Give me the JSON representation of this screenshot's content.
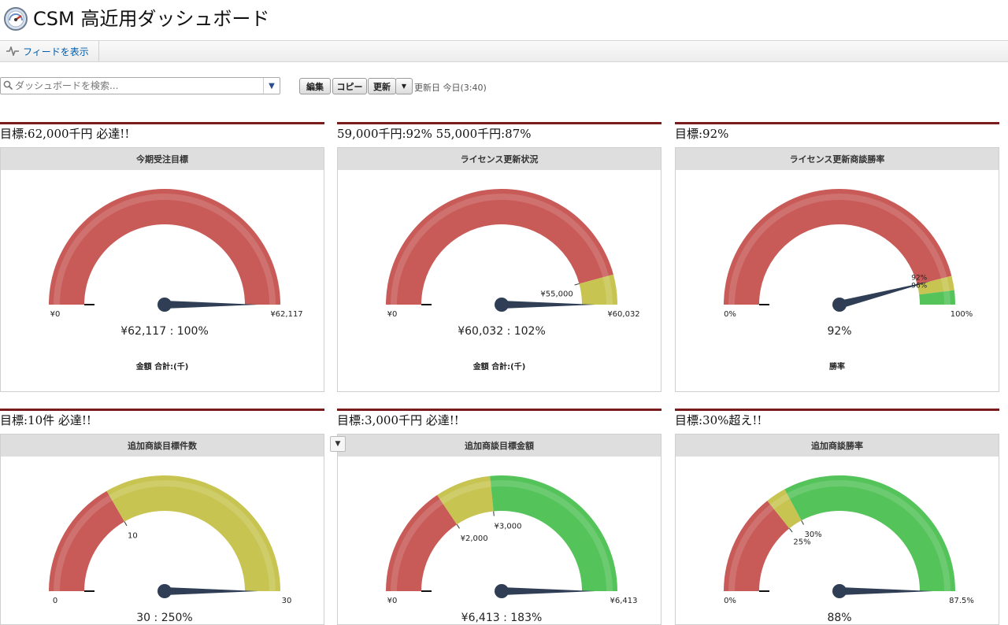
{
  "app": {
    "title": "CSM 高近用ダッシュボード",
    "icon": "dashboard-gauge-icon"
  },
  "feed": {
    "label": "フィードを表示",
    "icon": "feed-icon"
  },
  "toolbar": {
    "search_placeholder": "ダッシュボードを検索...",
    "edit_label": "編集",
    "copy_label": "コピー",
    "refresh_label": "更新",
    "refresh_menu": "▼",
    "updated_text": "更新日 今日(3:40)"
  },
  "colors": {
    "red": "#c85a57",
    "yellow": "#c8c452",
    "green": "#54c35a",
    "needle": "#2f3e55",
    "rule": "#7b1c1c"
  },
  "panels": [
    {
      "title": "目標:62,000千円 必達!!",
      "header": "今期受注目標",
      "min_label": "¥0",
      "max_label": "¥62,117",
      "value_text": "¥62,117 : 100%",
      "footer": "金額 合計:(千)",
      "min": 0,
      "max": 62117,
      "value": 62117,
      "bands": [
        {
          "color": "red",
          "to": 62117
        }
      ],
      "band_labels": [],
      "needle_labels": []
    },
    {
      "title": "59,000千円:92%  55,000千円:87%",
      "header": "ライセンス更新状況",
      "min_label": "¥0",
      "max_label": "¥60,032",
      "value_text": "¥60,032 : 102%",
      "footer": "金額 合計:(千)",
      "min": 0,
      "max": 60032,
      "value": 60032,
      "bands": [
        {
          "color": "red",
          "to": 55000
        },
        {
          "color": "yellow",
          "to": 60032
        }
      ],
      "band_labels": [
        {
          "value": 55000,
          "text": "¥55,000"
        }
      ],
      "needle_labels": []
    },
    {
      "title": "目標:92%",
      "header": "ライセンス更新商談勝率",
      "min_label": "0%",
      "max_label": "100%",
      "value_text": "92%",
      "footer": "勝率",
      "min": 0,
      "max": 100,
      "value": 92,
      "bands": [
        {
          "color": "red",
          "to": 92
        },
        {
          "color": "yellow",
          "to": 96
        },
        {
          "color": "green",
          "to": 100
        }
      ],
      "band_labels": [],
      "needle_labels": [
        {
          "text": "92%"
        },
        {
          "text": "96%"
        }
      ]
    },
    {
      "title": "目標:10件 必達!!",
      "header": "追加商談目標件数",
      "min_label": "0",
      "max_label": "30",
      "value_text": "30 : 250%",
      "footer": "",
      "min": 0,
      "max": 30,
      "value": 30,
      "bands": [
        {
          "color": "red",
          "to": 10
        },
        {
          "color": "yellow",
          "to": 30
        }
      ],
      "band_labels": [
        {
          "value": 10,
          "text": "10"
        }
      ],
      "needle_labels": []
    },
    {
      "title": "目標:3,000千円 必達!!",
      "header": "追加商談目標金額",
      "min_label": "¥0",
      "max_label": "¥6,413",
      "value_text": "¥6,413 : 183%",
      "footer": "",
      "min": 0,
      "max": 6413,
      "value": 6413,
      "bands": [
        {
          "color": "red",
          "to": 2000
        },
        {
          "color": "yellow",
          "to": 3000
        },
        {
          "color": "green",
          "to": 6413
        }
      ],
      "band_labels": [
        {
          "value": 2000,
          "text": "¥2,000"
        },
        {
          "value": 3000,
          "text": "¥3,000"
        }
      ],
      "needle_labels": []
    },
    {
      "title": "目標:30%超え!!",
      "header": "追加商談勝率",
      "min_label": "0%",
      "max_label": "87.5%",
      "value_text": "88%",
      "footer": "",
      "min": 0,
      "max": 87.5,
      "value": 87.5,
      "bands": [
        {
          "color": "red",
          "to": 25
        },
        {
          "color": "yellow",
          "to": 30
        },
        {
          "color": "green",
          "to": 87.5
        }
      ],
      "band_labels": [
        {
          "value": 25,
          "text": "25%"
        },
        {
          "value": 30,
          "text": "30%"
        }
      ],
      "needle_labels": []
    }
  ]
}
